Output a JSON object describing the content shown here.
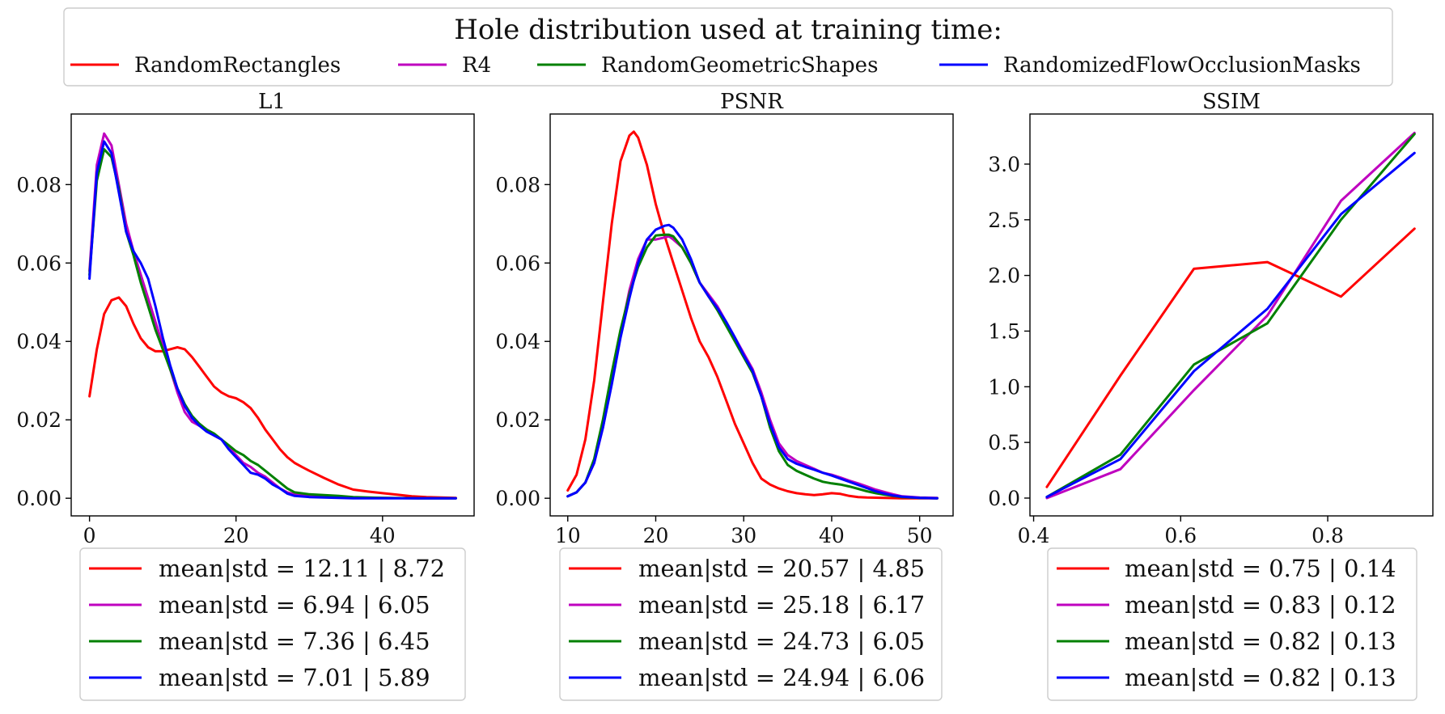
{
  "chart_data": {
    "title": "Hole distribution used at training time:",
    "legend": {
      "placement": "top",
      "entries": [
        {
          "name": "RandomRectangles",
          "color": "#ff0000"
        },
        {
          "name": "R4",
          "color": "#bf00bf"
        },
        {
          "name": "RandomGeometricShapes",
          "color": "#008000"
        },
        {
          "name": "RandomizedFlowOcclusionMasks",
          "color": "#0000ff"
        }
      ]
    },
    "panels": [
      {
        "title": "L1",
        "type": "line",
        "xlim": [
          -2.5,
          52.5
        ],
        "ylim": [
          -0.0045,
          0.098
        ],
        "xticks": [
          0,
          20,
          40
        ],
        "xtick_labels": [
          "0",
          "20",
          "40"
        ],
        "yticks": [
          0,
          0.02,
          0.04,
          0.06,
          0.08
        ],
        "ytick_labels": [
          "0.00",
          "0.02",
          "0.04",
          "0.06",
          "0.08"
        ],
        "series": [
          {
            "name": "RandomRectangles",
            "color": "#ff0000",
            "x": [
              0,
              1,
              2,
              3,
              4,
              5,
              6,
              7,
              8,
              9,
              10,
              11,
              12,
              13,
              14,
              15,
              16,
              17,
              18,
              19,
              20,
              21,
              22,
              23,
              24,
              25,
              26,
              27,
              28,
              29,
              30,
              32,
              34,
              36,
              38,
              40,
              42,
              44,
              46,
              48,
              50
            ],
            "y": [
              0.026,
              0.038,
              0.047,
              0.0505,
              0.0512,
              0.049,
              0.0445,
              0.0408,
              0.0385,
              0.0375,
              0.0375,
              0.038,
              0.0385,
              0.038,
              0.036,
              0.0335,
              0.031,
              0.0285,
              0.027,
              0.026,
              0.0255,
              0.0245,
              0.023,
              0.0205,
              0.0175,
              0.015,
              0.0125,
              0.0105,
              0.009,
              0.008,
              0.007,
              0.0052,
              0.0035,
              0.0022,
              0.0017,
              0.0013,
              0.0009,
              0.0005,
              0.0003,
              0.0002,
              0.0001
            ]
          },
          {
            "name": "R4",
            "color": "#bf00bf",
            "x": [
              0,
              1,
              2,
              3,
              4,
              5,
              6,
              7,
              8,
              9,
              10,
              11,
              12,
              13,
              14,
              15,
              16,
              17,
              18,
              19,
              20,
              21,
              22,
              23,
              24,
              25,
              26,
              27,
              28,
              30,
              32,
              34,
              36,
              38,
              40,
              45,
              50
            ],
            "y": [
              0.058,
              0.085,
              0.093,
              0.09,
              0.08,
              0.07,
              0.063,
              0.057,
              0.051,
              0.045,
              0.039,
              0.033,
              0.027,
              0.022,
              0.0195,
              0.0185,
              0.0175,
              0.016,
              0.015,
              0.013,
              0.011,
              0.009,
              0.008,
              0.0065,
              0.0055,
              0.004,
              0.0025,
              0.0015,
              0.001,
              0.0006,
              0.0004,
              0.0003,
              0.0002,
              0.0001,
              0.0001,
              0.0,
              0.0
            ]
          },
          {
            "name": "RandomGeometricShapes",
            "color": "#008000",
            "x": [
              0,
              1,
              2,
              3,
              4,
              5,
              6,
              7,
              8,
              9,
              10,
              11,
              12,
              13,
              14,
              15,
              16,
              17,
              18,
              19,
              20,
              21,
              22,
              23,
              24,
              25,
              26,
              27,
              28,
              30,
              32,
              34,
              36,
              38,
              40,
              45,
              50
            ],
            "y": [
              0.057,
              0.081,
              0.089,
              0.087,
              0.079,
              0.068,
              0.062,
              0.055,
              0.049,
              0.043,
              0.038,
              0.033,
              0.028,
              0.024,
              0.021,
              0.019,
              0.0175,
              0.0165,
              0.015,
              0.0135,
              0.012,
              0.011,
              0.0095,
              0.0085,
              0.007,
              0.0055,
              0.004,
              0.0025,
              0.0015,
              0.001,
              0.0008,
              0.0006,
              0.0003,
              0.0002,
              0.0001,
              0.0,
              0.0
            ]
          },
          {
            "name": "RandomizedFlowOcclusionMasks",
            "color": "#0000ff",
            "x": [
              0,
              1,
              2,
              3,
              4,
              5,
              6,
              7,
              8,
              9,
              10,
              11,
              12,
              13,
              14,
              15,
              16,
              17,
              18,
              19,
              20,
              21,
              22,
              23,
              24,
              25,
              26,
              27,
              28,
              30,
              32,
              34,
              36,
              38,
              40,
              45,
              50
            ],
            "y": [
              0.056,
              0.083,
              0.091,
              0.088,
              0.078,
              0.068,
              0.063,
              0.06,
              0.056,
              0.049,
              0.041,
              0.034,
              0.028,
              0.0235,
              0.0205,
              0.0185,
              0.017,
              0.016,
              0.015,
              0.0125,
              0.0105,
              0.0085,
              0.0065,
              0.006,
              0.005,
              0.0035,
              0.0025,
              0.0012,
              0.0006,
              0.0003,
              0.0002,
              0.0001,
              0.0,
              0.0,
              0.0,
              0.0,
              0.0
            ]
          }
        ],
        "stats": [
          {
            "color": "#ff0000",
            "label": "mean|std = 12.11 | 8.72"
          },
          {
            "color": "#bf00bf",
            "label": "mean|std = 6.94 | 6.05"
          },
          {
            "color": "#008000",
            "label": "mean|std = 7.36 | 6.45"
          },
          {
            "color": "#0000ff",
            "label": "mean|std = 7.01 | 5.89"
          }
        ]
      },
      {
        "title": "PSNR",
        "type": "line",
        "xlim": [
          8,
          53.8
        ],
        "ylim": [
          -0.0045,
          0.098
        ],
        "xticks": [
          10,
          20,
          30,
          40,
          50
        ],
        "xtick_labels": [
          "10",
          "20",
          "30",
          "40",
          "50"
        ],
        "yticks": [
          0,
          0.02,
          0.04,
          0.06,
          0.08
        ],
        "ytick_labels": [
          "0.00",
          "0.02",
          "0.04",
          "0.06",
          "0.08"
        ],
        "series": [
          {
            "name": "RandomRectangles",
            "color": "#ff0000",
            "x": [
              10,
              11,
              12,
              13,
              14,
              15,
              16,
              17,
              17.5,
              18,
              19,
              20,
              21,
              22,
              23,
              24,
              25,
              26,
              27,
              28,
              29,
              30,
              31,
              32,
              33,
              34,
              35,
              36,
              37,
              38,
              39,
              40,
              41,
              42,
              43,
              44,
              46,
              48,
              50,
              52
            ],
            "y": [
              0.002,
              0.006,
              0.015,
              0.03,
              0.05,
              0.07,
              0.086,
              0.0925,
              0.0935,
              0.092,
              0.085,
              0.075,
              0.067,
              0.06,
              0.053,
              0.046,
              0.04,
              0.036,
              0.031,
              0.025,
              0.019,
              0.014,
              0.009,
              0.005,
              0.0035,
              0.0025,
              0.0018,
              0.0013,
              0.001,
              0.0008,
              0.001,
              0.0013,
              0.0011,
              0.0006,
              0.0003,
              0.0002,
              0.0001,
              0.0,
              0.0,
              0.0
            ]
          },
          {
            "name": "R4",
            "color": "#bf00bf",
            "x": [
              10,
              11,
              12,
              13,
              14,
              15,
              16,
              17,
              18,
              19,
              20,
              21,
              21.5,
              22,
              23,
              24,
              25,
              26,
              27,
              28,
              29,
              30,
              31,
              32,
              33,
              34,
              35,
              36,
              37,
              38,
              39,
              40,
              41,
              42,
              43,
              44,
              45,
              46,
              47,
              48,
              50,
              52
            ],
            "y": [
              0.0005,
              0.0015,
              0.004,
              0.009,
              0.018,
              0.03,
              0.042,
              0.053,
              0.061,
              0.066,
              0.066,
              0.0665,
              0.0668,
              0.066,
              0.064,
              0.06,
              0.055,
              0.052,
              0.049,
              0.045,
              0.041,
              0.037,
              0.033,
              0.027,
              0.02,
              0.014,
              0.011,
              0.0095,
              0.0085,
              0.0075,
              0.0065,
              0.006,
              0.0053,
              0.0045,
              0.0038,
              0.003,
              0.0022,
              0.0016,
              0.001,
              0.0005,
              0.0002,
              0.0001
            ]
          },
          {
            "name": "RandomGeometricShapes",
            "color": "#008000",
            "x": [
              10,
              11,
              12,
              13,
              14,
              15,
              16,
              17,
              18,
              19,
              20,
              21,
              21.5,
              22,
              23,
              24,
              25,
              26,
              27,
              28,
              29,
              30,
              31,
              32,
              33,
              34,
              35,
              36,
              37,
              38,
              39,
              40,
              41,
              42,
              43,
              44,
              45,
              46,
              47,
              48,
              50,
              52
            ],
            "y": [
              0.0005,
              0.0015,
              0.004,
              0.01,
              0.02,
              0.032,
              0.043,
              0.052,
              0.059,
              0.064,
              0.067,
              0.0672,
              0.0672,
              0.0668,
              0.064,
              0.06,
              0.055,
              0.0515,
              0.048,
              0.044,
              0.04,
              0.036,
              0.032,
              0.026,
              0.018,
              0.012,
              0.0085,
              0.007,
              0.006,
              0.005,
              0.0042,
              0.0038,
              0.0035,
              0.003,
              0.0024,
              0.0018,
              0.0013,
              0.0009,
              0.0006,
              0.0003,
              0.0001,
              0.0
            ]
          },
          {
            "name": "RandomizedFlowOcclusionMasks",
            "color": "#0000ff",
            "x": [
              10,
              11,
              12,
              13,
              14,
              15,
              16,
              17,
              18,
              19,
              20,
              21,
              21.5,
              22,
              23,
              24,
              25,
              26,
              27,
              28,
              29,
              30,
              31,
              32,
              33,
              34,
              35,
              36,
              37,
              38,
              39,
              40,
              41,
              42,
              43,
              44,
              45,
              46,
              47,
              48,
              50,
              52
            ],
            "y": [
              0.0005,
              0.0015,
              0.004,
              0.009,
              0.018,
              0.029,
              0.041,
              0.051,
              0.06,
              0.066,
              0.0685,
              0.0695,
              0.0697,
              0.069,
              0.066,
              0.061,
              0.055,
              0.0515,
              0.0485,
              0.045,
              0.041,
              0.0365,
              0.0325,
              0.026,
              0.019,
              0.013,
              0.01,
              0.0088,
              0.008,
              0.0073,
              0.0065,
              0.0058,
              0.005,
              0.0042,
              0.0034,
              0.0026,
              0.0018,
              0.0012,
              0.0007,
              0.0004,
              0.0001,
              0.0
            ]
          }
        ],
        "stats": [
          {
            "color": "#ff0000",
            "label": "mean|std = 20.57 | 4.85"
          },
          {
            "color": "#bf00bf",
            "label": "mean|std = 25.18 | 6.17"
          },
          {
            "color": "#008000",
            "label": "mean|std = 24.73 | 6.05"
          },
          {
            "color": "#0000ff",
            "label": "mean|std = 24.94 | 6.06"
          }
        ]
      },
      {
        "title": "SSIM",
        "type": "line",
        "xlim": [
          0.395,
          0.943
        ],
        "ylim": [
          -0.16,
          3.45
        ],
        "xticks": [
          0.4,
          0.6,
          0.8
        ],
        "xtick_labels": [
          "0.4",
          "0.6",
          "0.8"
        ],
        "yticks": [
          0,
          0.5,
          1.0,
          1.5,
          2.0,
          2.5,
          3.0
        ],
        "ytick_labels": [
          "0.0",
          "0.5",
          "1.0",
          "1.5",
          "2.0",
          "2.5",
          "3.0"
        ],
        "series": [
          {
            "name": "RandomRectangles",
            "color": "#ff0000",
            "x": [
              0.418,
              0.518,
              0.618,
              0.718,
              0.818,
              0.918
            ],
            "y": [
              0.1,
              1.1,
              2.06,
              2.12,
              1.81,
              2.42
            ]
          },
          {
            "name": "R4",
            "color": "#bf00bf",
            "x": [
              0.418,
              0.518,
              0.618,
              0.718,
              0.818,
              0.918
            ],
            "y": [
              0.0,
              0.26,
              0.97,
              1.64,
              2.67,
              3.28
            ]
          },
          {
            "name": "RandomGeometricShapes",
            "color": "#008000",
            "x": [
              0.418,
              0.518,
              0.618,
              0.718,
              0.818,
              0.918
            ],
            "y": [
              0.01,
              0.39,
              1.2,
              1.57,
              2.5,
              3.27
            ]
          },
          {
            "name": "RandomizedFlowOcclusionMasks",
            "color": "#0000ff",
            "x": [
              0.418,
              0.518,
              0.618,
              0.718,
              0.818,
              0.918
            ],
            "y": [
              0.01,
              0.35,
              1.14,
              1.7,
              2.55,
              3.1
            ]
          }
        ],
        "stats": [
          {
            "color": "#ff0000",
            "label": "mean|std = 0.75 | 0.14"
          },
          {
            "color": "#bf00bf",
            "label": "mean|std = 0.83 | 0.12"
          },
          {
            "color": "#008000",
            "label": "mean|std = 0.82 | 0.13"
          },
          {
            "color": "#0000ff",
            "label": "mean|std = 0.82 | 0.13"
          }
        ]
      }
    ]
  }
}
